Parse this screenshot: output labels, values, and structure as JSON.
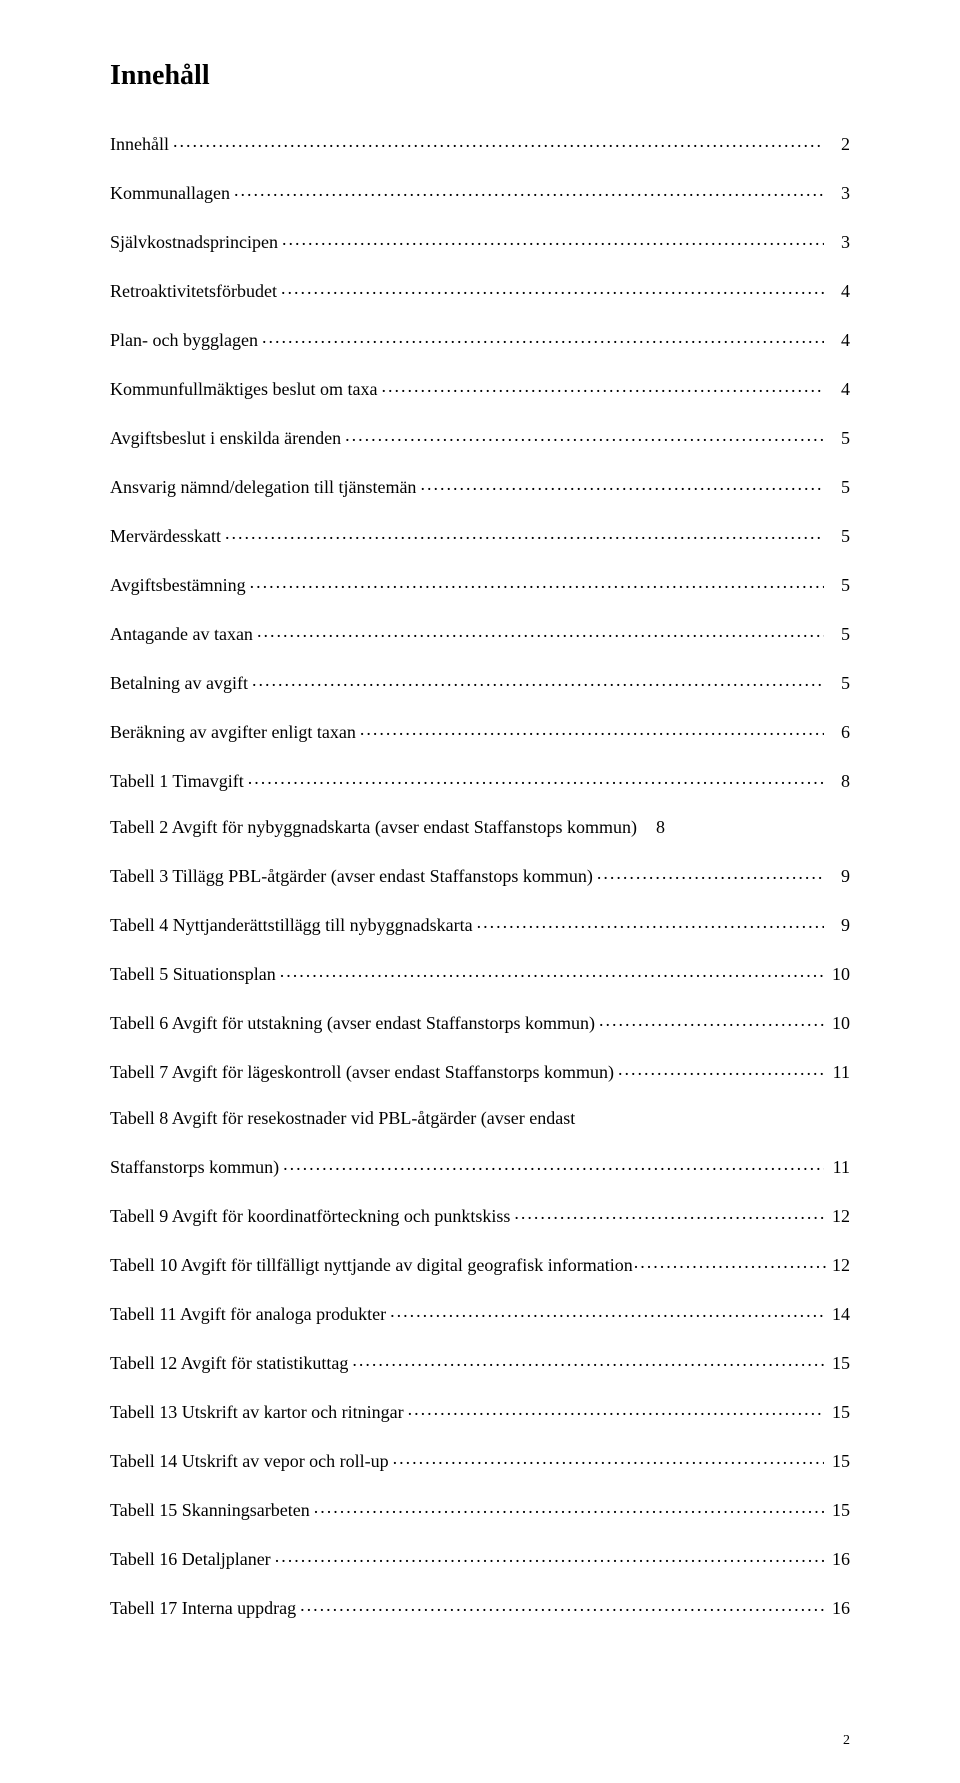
{
  "typography": {
    "font_family": "Palatino Linotype, Book Antiqua, Palatino, Georgia, serif",
    "heading_fontsize_pt": 21,
    "body_fontsize_pt": 13.5,
    "pagenum_fontsize_pt": 10.5,
    "text_color": "#000000",
    "background_color": "#ffffff",
    "leader_char": "."
  },
  "heading": "Innehåll",
  "page_number": "2",
  "toc": [
    {
      "label": "Innehåll",
      "page": "2"
    },
    {
      "label": "Kommunallagen",
      "page": "3"
    },
    {
      "label": "Självkostnadsprincipen",
      "page": "3"
    },
    {
      "label": "Retroaktivitetsförbudet",
      "page": "4"
    },
    {
      "label": "Plan- och bygglagen",
      "page": "4"
    },
    {
      "label": "Kommunfullmäktiges beslut om taxa",
      "page": "4"
    },
    {
      "label": "Avgiftsbeslut i enskilda ärenden",
      "page": "5"
    },
    {
      "label": "Ansvarig nämnd/delegation till tjänstemän",
      "page": "5"
    },
    {
      "label": "Mervärdesskatt",
      "page": "5"
    },
    {
      "label": "Avgiftsbestämning",
      "page": "5"
    },
    {
      "label": "Antagande av taxan",
      "page": "5"
    },
    {
      "label": "Betalning av avgift",
      "page": "5"
    },
    {
      "label": "Beräkning av avgifter enligt taxan",
      "page": "6"
    },
    {
      "label": "Tabell 1 Timavgift",
      "page": "8"
    },
    {
      "label": "Tabell 2 Avgift för nybyggnadskarta (avser endast Staffanstops kommun)",
      "page": "8",
      "no_leader": true
    },
    {
      "label": "Tabell 3 Tillägg PBL-åtgärder (avser endast Staffanstops kommun)",
      "page": "9"
    },
    {
      "label": "Tabell 4 Nyttjanderättstillägg till nybyggnadskarta",
      "page": "9"
    },
    {
      "label": "Tabell 5 Situationsplan",
      "page": "10"
    },
    {
      "label": "Tabell 6 Avgift för utstakning (avser endast Staffanstorps kommun)",
      "page": "10"
    },
    {
      "label": "Tabell 7 Avgift för lägeskontroll (avser endast Staffanstorps kommun)",
      "page": "11"
    },
    {
      "line1": "Tabell 8 Avgift för resekostnader vid PBL-åtgärder (avser endast",
      "line2": "Staffanstorps kommun)",
      "page": "11",
      "wrap": true
    },
    {
      "label": "Tabell 9 Avgift för koordinatförteckning och punktskiss",
      "page": "12"
    },
    {
      "label": "Tabell 10 Avgift för tillfälligt nyttjande av digital geografisk information",
      "page": "12",
      "tight_leader": true
    },
    {
      "label": "Tabell 11 Avgift för analoga produkter",
      "page": "14"
    },
    {
      "label": "Tabell 12 Avgift för statistikuttag",
      "page": "15"
    },
    {
      "label": "Tabell 13 Utskrift av kartor och ritningar",
      "page": "15"
    },
    {
      "label": "Tabell 14 Utskrift av vepor och roll-up",
      "page": "15"
    },
    {
      "label": "Tabell 15 Skanningsarbeten",
      "page": "15"
    },
    {
      "label": "Tabell 16 Detaljplaner",
      "page": "16"
    },
    {
      "label": "Tabell 17 Interna uppdrag",
      "page": "16"
    }
  ]
}
